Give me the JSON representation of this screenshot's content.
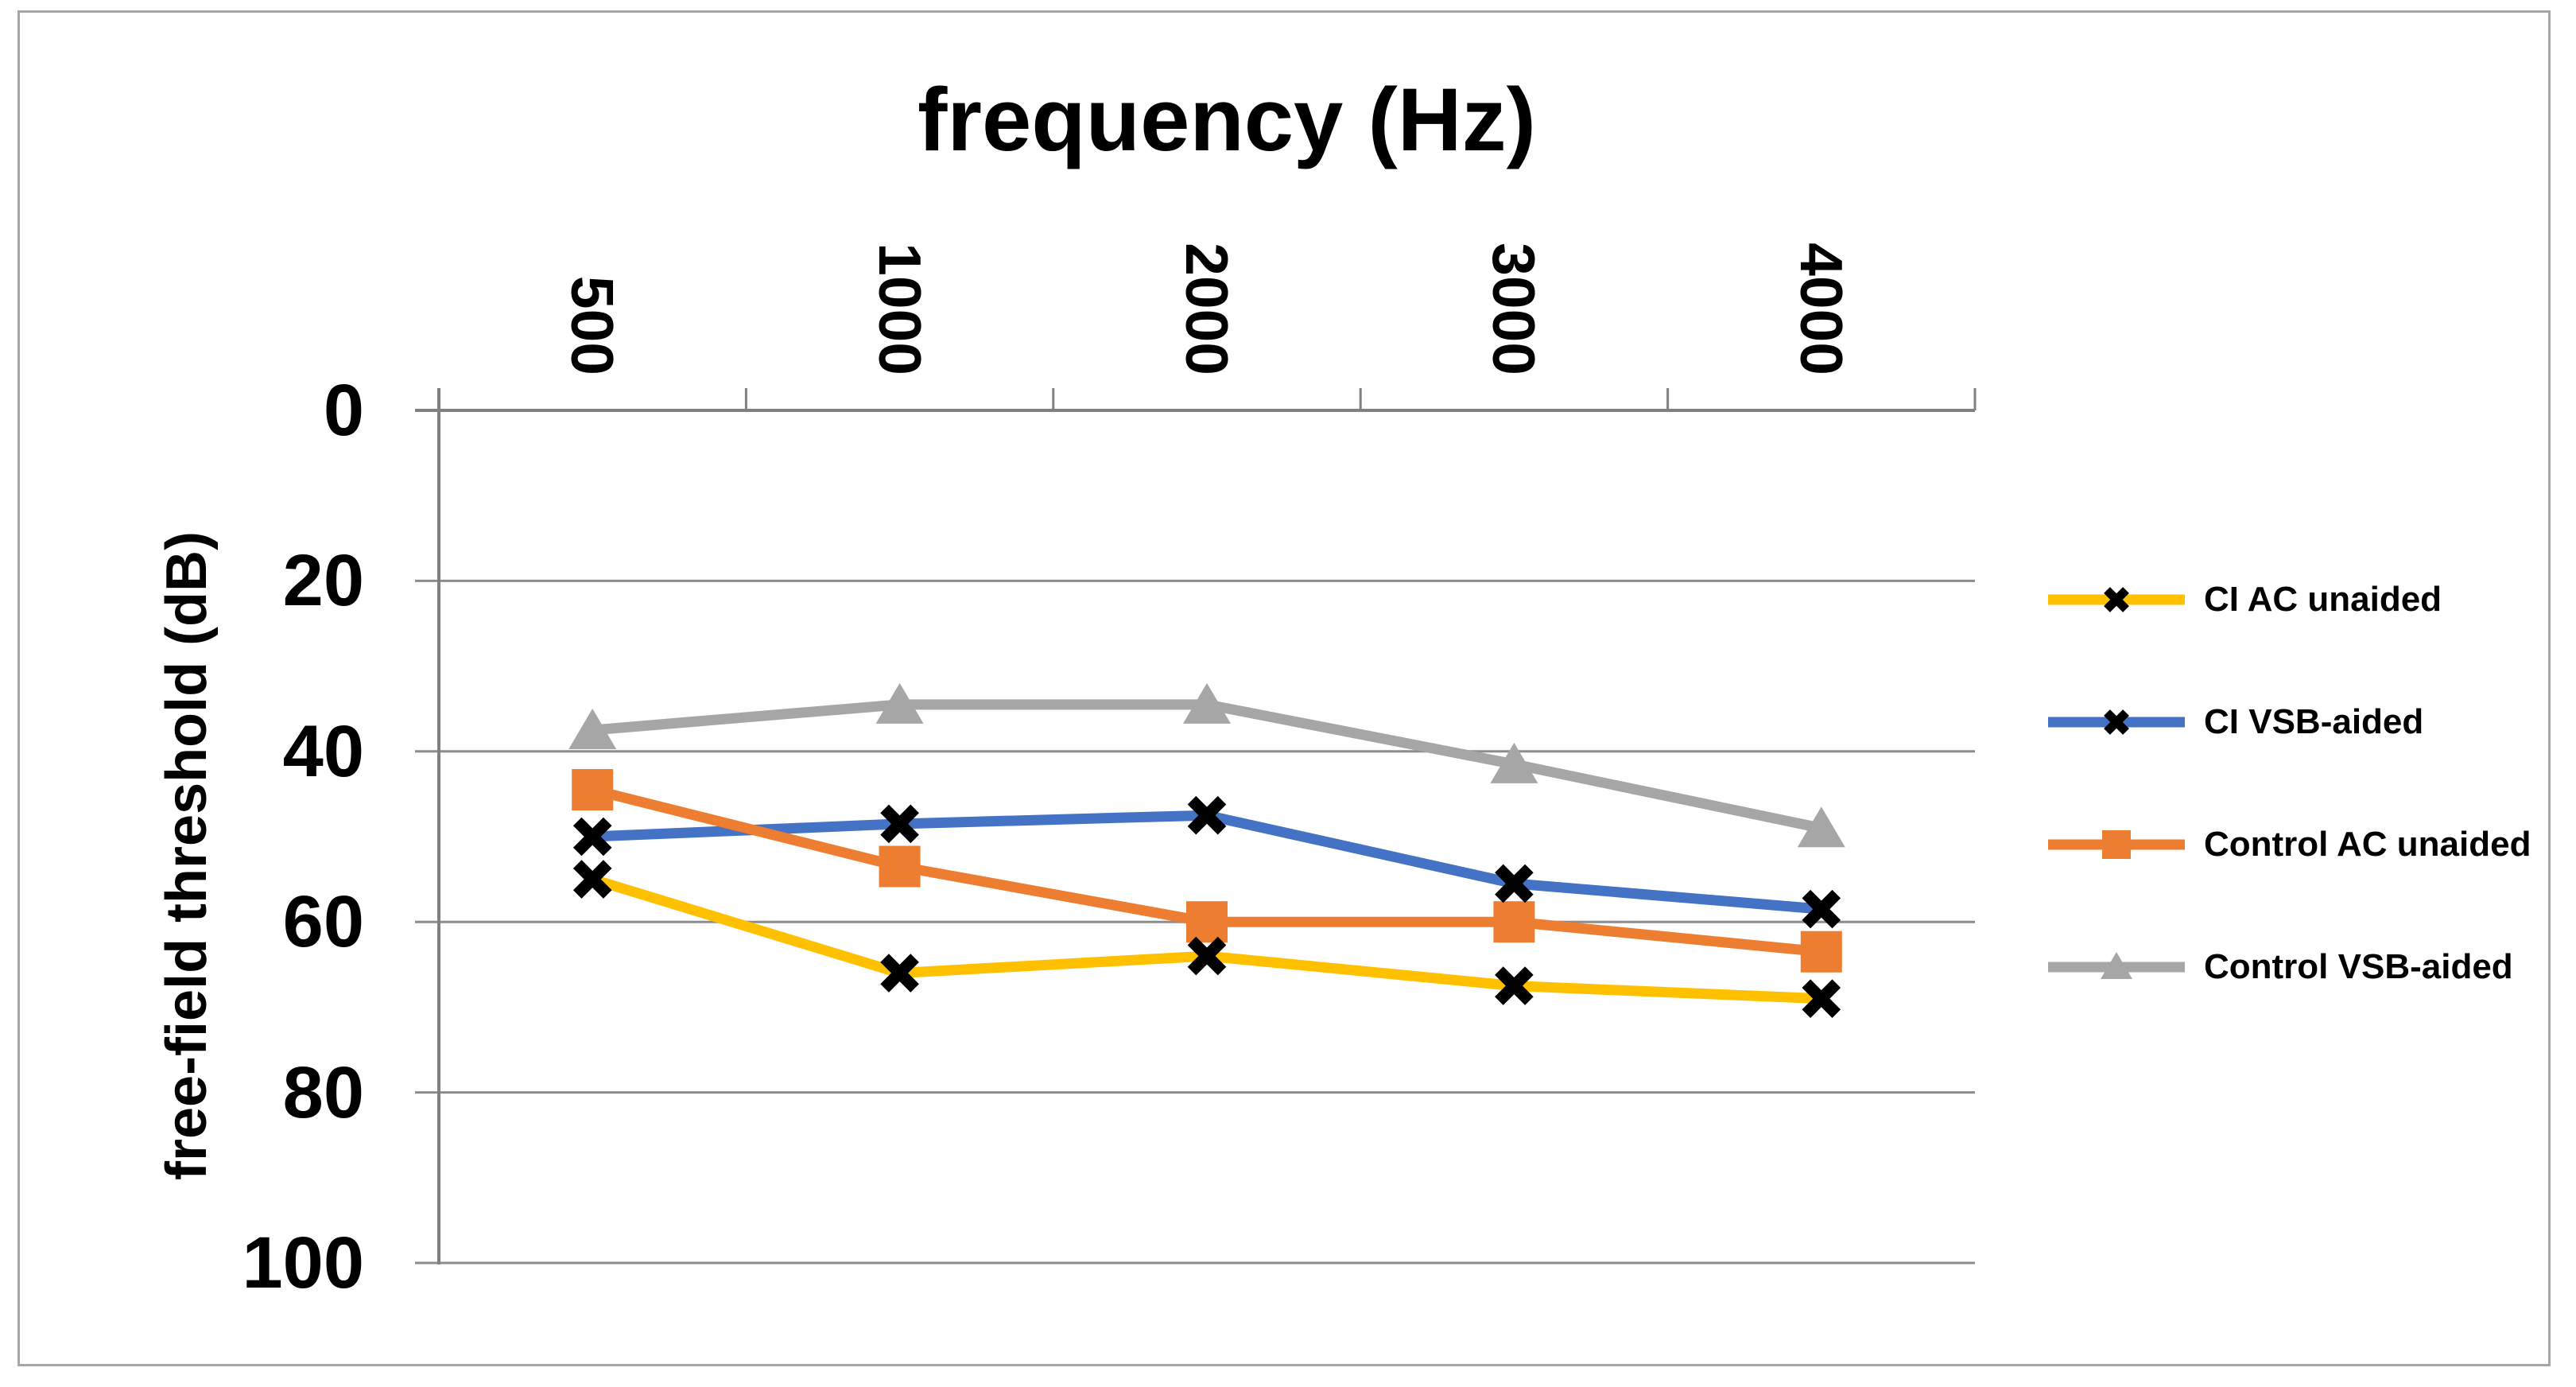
{
  "chart_data": {
    "type": "line",
    "title": "frequency (Hz)",
    "ylabel": "free-field threshold (dB)",
    "categories": [
      500,
      1000,
      2000,
      3000,
      4000
    ],
    "x_tick_labels": [
      "500",
      "1000",
      "2000",
      "3000",
      "4000"
    ],
    "y_axis": {
      "min": 0,
      "max": 100,
      "step": 20,
      "inverted": true,
      "tick_labels": [
        "0",
        "20",
        "40",
        "60",
        "80",
        "100"
      ]
    },
    "grid": true,
    "legend_position": "right",
    "series": [
      {
        "name": "CI AC unaided",
        "color": "#FFC000",
        "marker": "x",
        "marker_color": "#000000",
        "values": [
          55,
          66,
          64,
          67.5,
          69
        ]
      },
      {
        "name": "CI VSB-aided",
        "color": "#4472C4",
        "marker": "x",
        "marker_color": "#000000",
        "values": [
          50,
          48.5,
          47.5,
          55.5,
          58.5
        ]
      },
      {
        "name": "Control AC unaided",
        "color": "#ED7D31",
        "marker": "square",
        "marker_color": "#ED7D31",
        "values": [
          44.5,
          53.5,
          60,
          60,
          63.5
        ]
      },
      {
        "name": "Control VSB-aided",
        "color": "#A6A6A6",
        "marker": "triangle",
        "marker_color": "#A6A6A6",
        "values": [
          37.5,
          34.5,
          34.5,
          41.5,
          49
        ]
      }
    ],
    "colors": {
      "gridline": "#8C8C8C",
      "axis": "#808080",
      "frame_border": "#A6A6A6",
      "text": "#000000",
      "background": "#FFFFFF"
    }
  }
}
